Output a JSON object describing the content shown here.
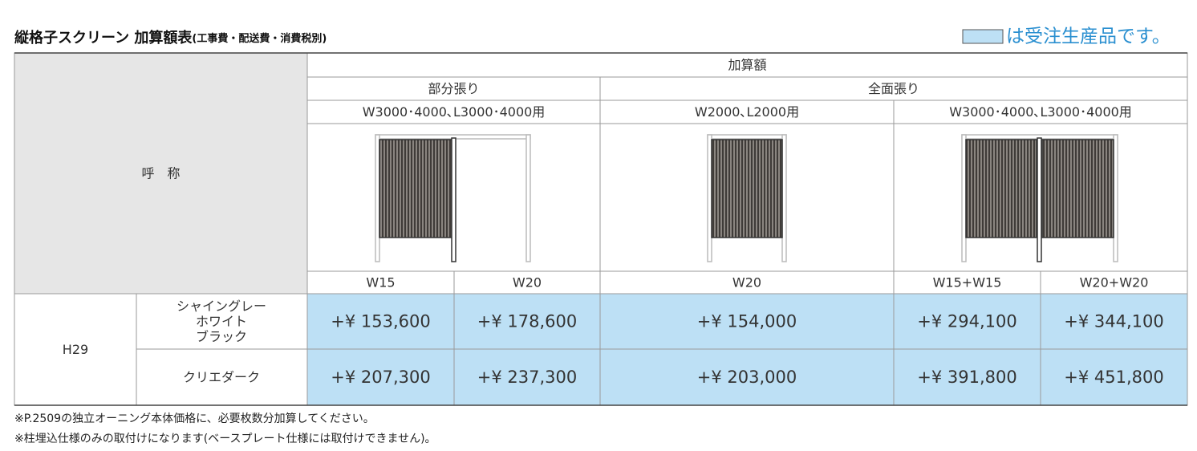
{
  "header": {
    "title": "縦格子スクリーン 加算額表",
    "title_note": "(工事費・配送費・消費税別)",
    "legend": "は受注生産品です。"
  },
  "table": {
    "corner": "呼　称",
    "group": "加算額",
    "subgroups": [
      "部分張り",
      "全面張り"
    ],
    "applies": [
      "W3000･4000､L3000･4000用",
      "W2000､L2000用",
      "W3000･4000､L3000･4000用"
    ],
    "sizes": [
      "W15",
      "W20",
      "W20",
      "W15+W15",
      "W20+W20"
    ],
    "height": "H29",
    "rows": [
      {
        "color": [
          "シャイングレー",
          "ホワイト",
          "ブラック"
        ],
        "prices": [
          "+¥ 153,600",
          "+¥ 178,600",
          "+¥ 154,000",
          "+¥ 294,100",
          "+¥ 344,100"
        ]
      },
      {
        "color": [
          "クリエダーク"
        ],
        "prices": [
          "+¥ 207,300",
          "+¥ 237,300",
          "+¥ 203,000",
          "+¥ 391,800",
          "+¥ 451,800"
        ]
      }
    ]
  },
  "footnotes": [
    "※P.2509の独立オーニング本体価格に、必要枚数分加算してください。",
    "※柱埋込仕様のみの取付けになります(ベースプレート仕様には取付けできません)。"
  ]
}
